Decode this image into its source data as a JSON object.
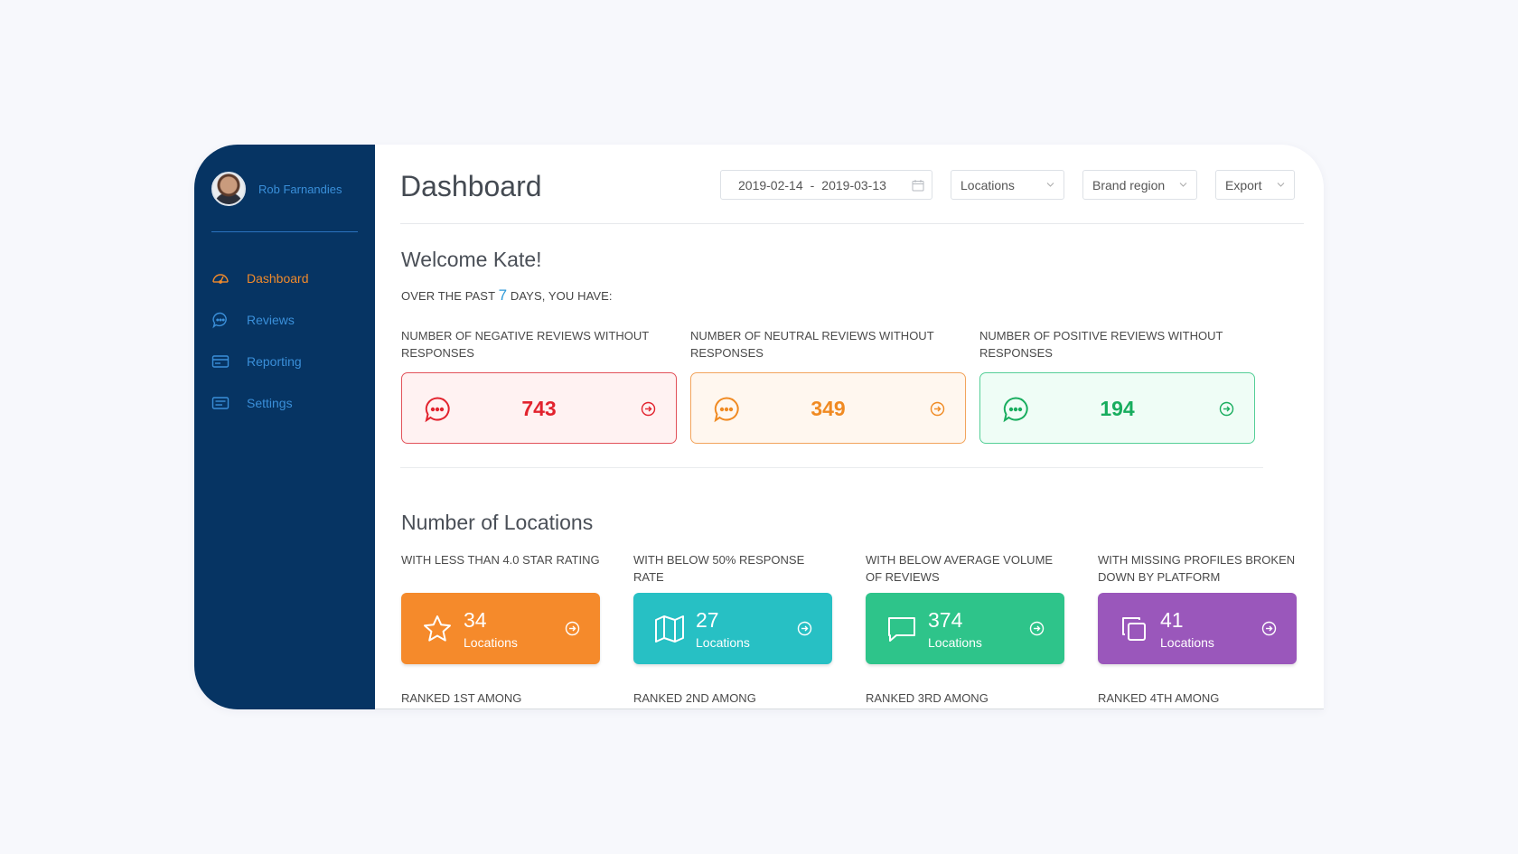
{
  "sidebar": {
    "profile_name": "Rob Farnandies",
    "items": [
      {
        "label": "Dashboard",
        "icon": "gauge-icon",
        "active": true
      },
      {
        "label": "Reviews",
        "icon": "chat-icon"
      },
      {
        "label": "Reporting",
        "icon": "report-icon"
      },
      {
        "label": "Settings",
        "icon": "settings-icon"
      }
    ]
  },
  "header": {
    "title": "Dashboard",
    "date_start": "2019-02-14",
    "date_sep": "-",
    "date_end": "2019-03-13",
    "locations_label": "Locations",
    "brand_region_label": "Brand region",
    "export_label": "Export"
  },
  "welcome": {
    "greeting": "Welcome Kate!",
    "period_prefix": "OVER THE PAST",
    "period_days": "7",
    "period_suffix": "DAYS, YOU HAVE:"
  },
  "reviews": [
    {
      "label": "NUMBER OF NEGATIVE REVIEWS WITHOUT RESPONSES",
      "value": "743",
      "color": "#e2232e"
    },
    {
      "label": "NUMBER OF NEUTRAL REVIEWS WITHOUT RESPONSES",
      "value": "349",
      "color": "#f08a22"
    },
    {
      "label": "NUMBER OF POSITIVE REVIEWS WITHOUT RESPONSES",
      "value": "194",
      "color": "#18ad5e"
    }
  ],
  "locations": {
    "title": "Number of Locations",
    "unit_label": "Locations",
    "cards": [
      {
        "label": "WITH LESS THAN 4.0 STAR RATING",
        "count": "34",
        "icon": "star-icon",
        "color": "#f58a2b",
        "rank": "RANKED 1ST AMONG"
      },
      {
        "label": "WITH BELOW 50% RESPONSE RATE",
        "count": "27",
        "icon": "map-icon",
        "color": "#27c0c4",
        "rank": "RANKED 2ND AMONG"
      },
      {
        "label": "WITH BELOW AVERAGE VOLUME OF REVIEWS",
        "count": "374",
        "icon": "message-icon",
        "color": "#2ec48a",
        "rank": "RANKED 3RD AMONG"
      },
      {
        "label": "WITH MISSING PROFILES BROKEN DOWN BY PLATFORM",
        "count": "41",
        "icon": "copy-icon",
        "color": "#9a57bb",
        "rank": "RANKED 4TH AMONG"
      }
    ]
  }
}
